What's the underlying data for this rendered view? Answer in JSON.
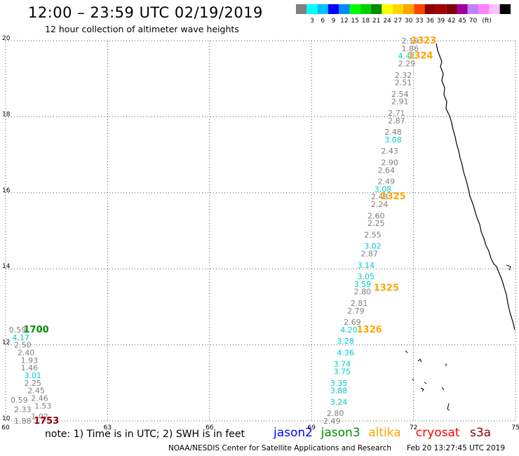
{
  "header": {
    "title": "12:00 – 23:59 UTC 02/19/2019",
    "subtitle": "12 hour collection of altimeter wave heights"
  },
  "legend": {
    "colors": [
      "#808080",
      "#00ffff",
      "#00bfff",
      "#0000ff",
      "#008bff",
      "#00ff00",
      "#00d000",
      "#008b00",
      "#ffff00",
      "#ffd700",
      "#ffa500",
      "#ff4500",
      "#8b0000",
      "#a00000",
      "#800000",
      "#a000a0",
      "#c080ff",
      "#ff80ff",
      "#ffc0ff",
      "#000000"
    ],
    "labels": [
      "3",
      "6",
      "9",
      "12",
      "15",
      "18",
      "21",
      "24",
      "27",
      "30",
      "33",
      "36",
      "39",
      "42",
      "45",
      "70"
    ],
    "unit": "(ft)"
  },
  "chart_data": {
    "type": "scatter",
    "x_ticks": [
      "60",
      "63",
      "66",
      "69",
      "72",
      "75"
    ],
    "y_ticks": [
      "10",
      "12",
      "14",
      "16",
      "18",
      "20"
    ],
    "xlim": [
      60,
      75
    ],
    "ylim": [
      10,
      20
    ],
    "grid": true,
    "tracks": [
      {
        "time": "1753",
        "time_color": "#8b0000",
        "time_at": [
          61.2,
          10.0
        ],
        "points": [
          {
            "lon": 60.5,
            "lat": 10.0,
            "v": "1.88",
            "c": "#808080"
          },
          {
            "lon": 61.0,
            "lat": 10.12,
            "v": "1.02",
            "c": "#808080"
          },
          {
            "lon": 60.5,
            "lat": 10.3,
            "v": "2.33",
            "c": "#808080"
          },
          {
            "lon": 61.1,
            "lat": 10.4,
            "v": "1.53",
            "c": "#808080"
          },
          {
            "lon": 60.4,
            "lat": 10.55,
            "v": "0.59",
            "c": "#808080"
          },
          {
            "lon": 61.0,
            "lat": 10.6,
            "v": "2.46",
            "c": "#808080"
          },
          {
            "lon": 60.9,
            "lat": 10.8,
            "v": "2.45",
            "c": "#808080"
          },
          {
            "lon": 60.8,
            "lat": 11.0,
            "v": "2.25",
            "c": "#808080"
          },
          {
            "lon": 60.8,
            "lat": 11.2,
            "v": "3.01",
            "c": "#00cccc"
          },
          {
            "lon": 60.7,
            "lat": 11.4,
            "v": "1.46",
            "c": "#808080"
          },
          {
            "lon": 60.7,
            "lat": 11.6,
            "v": "1.93",
            "c": "#808080"
          },
          {
            "lon": 60.6,
            "lat": 11.8,
            "v": "2.40",
            "c": "#808080"
          },
          {
            "lon": 60.5,
            "lat": 12.0,
            "v": "2.50",
            "c": "#808080"
          }
        ]
      },
      {
        "time": "1700",
        "time_color": "#008b00",
        "time_at": [
          60.9,
          12.4
        ],
        "points": [
          {
            "lon": 60.45,
            "lat": 12.2,
            "v": "4.17",
            "c": "#00cccc"
          },
          {
            "lon": 60.35,
            "lat": 12.4,
            "v": "0.59",
            "c": "#808080"
          }
        ]
      },
      {
        "time": "1326",
        "time_color": "#ffa500",
        "time_at": [
          70.7,
          12.4
        ],
        "points": [
          {
            "lon": 69.6,
            "lat": 10.0,
            "v": "2.49",
            "c": "#808080"
          },
          {
            "lon": 69.7,
            "lat": 10.2,
            "v": "2.80",
            "c": "#808080"
          },
          {
            "lon": 69.8,
            "lat": 10.5,
            "v": "3.24",
            "c": "#00cccc"
          },
          {
            "lon": 69.8,
            "lat": 10.8,
            "v": "3.88",
            "c": "#00cccc"
          },
          {
            "lon": 69.8,
            "lat": 11.0,
            "v": "3.35",
            "c": "#00cccc"
          },
          {
            "lon": 69.9,
            "lat": 11.3,
            "v": "3.75",
            "c": "#00cccc"
          },
          {
            "lon": 69.9,
            "lat": 11.5,
            "v": "3.74",
            "c": "#00cccc"
          },
          {
            "lon": 70.0,
            "lat": 11.8,
            "v": "4.36",
            "c": "#00cccc"
          },
          {
            "lon": 70.0,
            "lat": 12.1,
            "v": "3.28",
            "c": "#00cccc"
          },
          {
            "lon": 70.1,
            "lat": 12.4,
            "v": "4.20",
            "c": "#00cccc"
          }
        ]
      },
      {
        "time": "1325",
        "time_color": "#ffa500",
        "time_at": [
          71.2,
          13.5
        ],
        "points": [
          {
            "lon": 70.2,
            "lat": 12.6,
            "v": "2.69",
            "c": "#808080"
          },
          {
            "lon": 70.3,
            "lat": 12.9,
            "v": "2.79",
            "c": "#808080"
          },
          {
            "lon": 70.4,
            "lat": 13.1,
            "v": "2.81",
            "c": "#808080"
          },
          {
            "lon": 70.5,
            "lat": 13.4,
            "v": "2.80",
            "c": "#808080"
          },
          {
            "lon": 70.5,
            "lat": 13.6,
            "v": "3.59",
            "c": "#00cccc"
          },
          {
            "lon": 70.6,
            "lat": 13.8,
            "v": "3.05",
            "c": "#00cccc"
          },
          {
            "lon": 70.6,
            "lat": 14.1,
            "v": "3.14",
            "c": "#00cccc"
          },
          {
            "lon": 70.7,
            "lat": 14.4,
            "v": "2.87",
            "c": "#808080"
          },
          {
            "lon": 70.8,
            "lat": 14.6,
            "v": "3.02",
            "c": "#00cccc"
          },
          {
            "lon": 70.8,
            "lat": 14.9,
            "v": "2.55",
            "c": "#808080"
          },
          {
            "lon": 70.9,
            "lat": 15.2,
            "v": "2.25",
            "c": "#808080"
          },
          {
            "lon": 70.9,
            "lat": 15.4,
            "v": "2.60",
            "c": "#808080"
          },
          {
            "lon": 71.0,
            "lat": 15.7,
            "v": "2.24",
            "c": "#808080"
          },
          {
            "lon": 71.0,
            "lat": 15.9,
            "v": "2.48",
            "c": "#808080"
          }
        ]
      },
      {
        "time": "1325",
        "time_color": "#ffa500",
        "time_at": [
          71.4,
          15.9
        ],
        "points": [
          {
            "lon": 71.1,
            "lat": 16.1,
            "v": "3.08",
            "c": "#00cccc"
          },
          {
            "lon": 71.2,
            "lat": 16.3,
            "v": "2.49",
            "c": "#808080"
          },
          {
            "lon": 71.2,
            "lat": 16.6,
            "v": "2.64",
            "c": "#808080"
          },
          {
            "lon": 71.3,
            "lat": 16.8,
            "v": "2.90",
            "c": "#808080"
          },
          {
            "lon": 71.3,
            "lat": 17.1,
            "v": "2.43",
            "c": "#808080"
          },
          {
            "lon": 71.4,
            "lat": 17.4,
            "v": "3.08",
            "c": "#00cccc"
          },
          {
            "lon": 71.4,
            "lat": 17.6,
            "v": "2.48",
            "c": "#808080"
          },
          {
            "lon": 71.5,
            "lat": 17.9,
            "v": "2.87",
            "c": "#808080"
          },
          {
            "lon": 71.5,
            "lat": 18.1,
            "v": "2.71",
            "c": "#808080"
          },
          {
            "lon": 71.6,
            "lat": 18.4,
            "v": "2.91",
            "c": "#808080"
          },
          {
            "lon": 71.6,
            "lat": 18.6,
            "v": "2.54",
            "c": "#808080"
          },
          {
            "lon": 71.7,
            "lat": 18.9,
            "v": "2.51",
            "c": "#808080"
          },
          {
            "lon": 71.7,
            "lat": 19.1,
            "v": "2.32",
            "c": "#808080"
          },
          {
            "lon": 71.8,
            "lat": 19.4,
            "v": "2.29",
            "c": "#808080"
          }
        ]
      },
      {
        "time": "1324",
        "time_color": "#ffa500",
        "time_at": [
          72.2,
          19.6
        ],
        "points": [
          {
            "lon": 71.8,
            "lat": 19.6,
            "v": "4.41",
            "c": "#00cccc"
          }
        ]
      },
      {
        "time": "1323",
        "time_color": "#ffa500",
        "time_at": [
          72.3,
          20.0
        ],
        "points": [
          {
            "lon": 71.9,
            "lat": 19.8,
            "v": "1.86",
            "c": "#808080"
          },
          {
            "lon": 71.9,
            "lat": 20.0,
            "v": "2.19",
            "c": "#808080"
          }
        ]
      }
    ]
  },
  "footer": {
    "note": "note:  1) Time is in UTC;  2) SWH is in feet",
    "satellites": [
      {
        "name": "jason2",
        "color": "#0000ff"
      },
      {
        "name": "jason3",
        "color": "#008b00"
      },
      {
        "name": "altika",
        "color": "#ffa500"
      },
      {
        "name": "cryosat",
        "color": "#ff0000"
      },
      {
        "name": "s3a",
        "color": "#8b0000"
      }
    ],
    "credit": "NOAA/NESDIS Center for Satellite Applications and Research",
    "timestamp": "Feb 20 13:27:45 UTC 2019"
  }
}
